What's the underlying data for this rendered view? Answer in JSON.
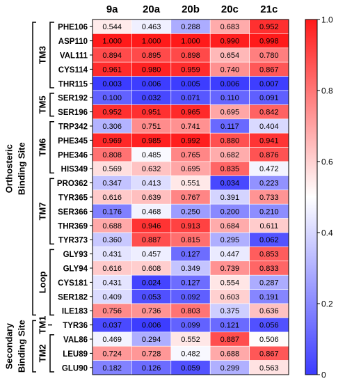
{
  "chart_data": {
    "type": "heatmap",
    "columns": [
      "9a",
      "20a",
      "20b",
      "20c",
      "21c"
    ],
    "rows": [
      "PHE106",
      "ASP110",
      "VAL111",
      "CYS114",
      "THR115",
      "SER192",
      "SER196",
      "TRP342",
      "PHE345",
      "PHE346",
      "HIS349",
      "PRO362",
      "TYR365",
      "SER366",
      "THR369",
      "TYR373",
      "GLY93",
      "GLY94",
      "CYS181",
      "SER182",
      "ILE183",
      "TYR36",
      "VAL86",
      "LEU89",
      "GLU90"
    ],
    "values": [
      [
        0.544,
        0.463,
        0.288,
        0.683,
        0.952
      ],
      [
        1.0,
        1.0,
        1.0,
        0.99,
        0.998
      ],
      [
        0.894,
        0.895,
        0.898,
        0.654,
        0.78
      ],
      [
        0.961,
        0.98,
        0.959,
        0.74,
        0.867
      ],
      [
        0.003,
        0.006,
        0.005,
        0.006,
        0.007
      ],
      [
        0.1,
        0.032,
        0.071,
        0.11,
        0.091
      ],
      [
        0.952,
        0.951,
        0.965,
        0.695,
        0.842
      ],
      [
        0.306,
        0.751,
        0.741,
        0.117,
        0.404
      ],
      [
        0.969,
        0.985,
        0.992,
        0.88,
        0.941
      ],
      [
        0.808,
        0.485,
        0.765,
        0.682,
        0.876
      ],
      [
        0.569,
        0.632,
        0.695,
        0.835,
        0.472
      ],
      [
        0.347,
        0.413,
        0.551,
        0.034,
        0.223
      ],
      [
        0.616,
        0.639,
        0.767,
        0.391,
        0.733
      ],
      [
        0.176,
        0.468,
        0.25,
        0.2,
        0.21
      ],
      [
        0.688,
        0.946,
        0.913,
        0.684,
        0.611
      ],
      [
        0.36,
        0.887,
        0.815,
        0.295,
        0.062
      ],
      [
        0.431,
        0.457,
        0.127,
        0.447,
        0.853
      ],
      [
        0.616,
        0.608,
        0.349,
        0.739,
        0.833
      ],
      [
        0.431,
        0.024,
        0.127,
        0.554,
        0.287
      ],
      [
        0.409,
        0.053,
        0.092,
        0.603,
        0.191
      ],
      [
        0.756,
        0.736,
        0.803,
        0.375,
        0.636
      ],
      [
        0.037,
        0.006,
        0.099,
        0.121,
        0.056
      ],
      [
        0.469,
        0.294,
        0.552,
        0.887,
        0.506
      ],
      [
        0.724,
        0.728,
        0.482,
        0.688,
        0.867
      ],
      [
        0.182,
        0.126,
        0.059,
        0.299,
        0.563
      ]
    ],
    "value_labels": [
      [
        "0.544",
        "0.463",
        "0.288",
        "0.683",
        "0.952"
      ],
      [
        "1.000",
        "1.000",
        "1.000",
        "0.990",
        "0.998"
      ],
      [
        "0.894",
        "0.895",
        "0.898",
        "0.654",
        "0.780"
      ],
      [
        "0.961",
        "0.980",
        "0.959",
        "0.740",
        "0.867"
      ],
      [
        "0.003",
        "0.006",
        "0.005",
        "0.006",
        "0.007"
      ],
      [
        "0.100",
        "0.032",
        "0.071",
        "0.110",
        "0.091"
      ],
      [
        "0.952",
        "0.951",
        "0.965",
        "0.695",
        "0.842"
      ],
      [
        "0.306",
        "0.751",
        "0.741",
        "0.117",
        "0.404"
      ],
      [
        "0.969",
        "0.985",
        "0.992",
        "0.880",
        "0.941"
      ],
      [
        "0.808",
        "0.485",
        "0.765",
        "0.682",
        "0.876"
      ],
      [
        "0.569",
        "0.632",
        "0.695",
        "0.835",
        "0.472"
      ],
      [
        "0.347",
        "0.413",
        "0.551",
        "0.034",
        "0.223"
      ],
      [
        "0.616",
        "0.639",
        "0.767",
        "0.391",
        "0.733"
      ],
      [
        "0.176",
        "0.468",
        "0.250",
        "0.200",
        "0.210"
      ],
      [
        "0.688",
        "0.946",
        "0.913",
        "0.684",
        "0.611"
      ],
      [
        "0.360",
        "0.887",
        "0.815",
        "0.295",
        "0.062"
      ],
      [
        "0.431",
        "0.457",
        "0.127",
        "0.447",
        "0.853"
      ],
      [
        "0.616",
        "0.608",
        "0.349",
        "0.739",
        "0.833"
      ],
      [
        "0.431",
        "0.024",
        "0.127",
        "0.554",
        "0.287"
      ],
      [
        "0.409",
        "0.053",
        "0.092",
        "0.603",
        "0.191"
      ],
      [
        "0.756",
        "0.736",
        "0.803",
        "0.375",
        "0.636"
      ],
      [
        "0.037",
        "0.006",
        "0.099",
        "0.121",
        "0.056"
      ],
      [
        "0.469",
        "0.294",
        "0.552",
        "0.887",
        "0.506"
      ],
      [
        "0.724",
        "0.728",
        "0.482",
        "0.688",
        "0.867"
      ],
      [
        "0.182",
        "0.126",
        "0.059",
        "0.299",
        "0.563"
      ]
    ],
    "groups": [
      {
        "label": "TM3",
        "first_row": 0,
        "last_row": 4
      },
      {
        "label": "TM5",
        "first_row": 5,
        "last_row": 6
      },
      {
        "label": "TM6",
        "first_row": 7,
        "last_row": 10
      },
      {
        "label": "TM7",
        "first_row": 11,
        "last_row": 15
      },
      {
        "label": "Loop",
        "first_row": 16,
        "last_row": 20
      },
      {
        "label": "TM1",
        "first_row": 21,
        "last_row": 21
      },
      {
        "label": "TM2",
        "first_row": 22,
        "last_row": 24
      }
    ],
    "sites": [
      {
        "label": "Orthosteric Binding Site",
        "first_row": 0,
        "last_row": 20
      },
      {
        "label": "Secondary Binding Site",
        "first_row": 21,
        "last_row": 24
      }
    ],
    "colorbar": {
      "min": 0,
      "max": 1,
      "ticks": [
        "0",
        "0.2",
        "0.4",
        "0.6",
        "0.8",
        "1.0"
      ],
      "tick_values": [
        0,
        0.2,
        0.4,
        0.6,
        0.8,
        1.0
      ],
      "colors": {
        "low": "#3b3bff",
        "mid": "#ffffff",
        "high": "#ff1a1a"
      }
    }
  }
}
